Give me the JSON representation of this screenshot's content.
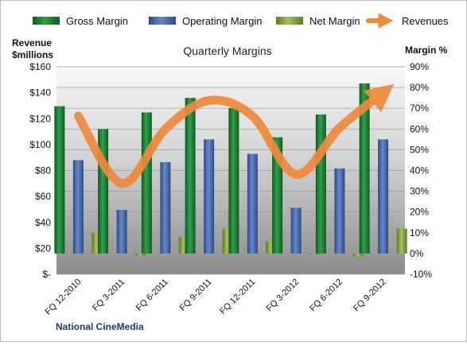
{
  "chart_data": {
    "type": "bar",
    "title": "Quarterly Margins",
    "footer": "National CineMedia",
    "categories": [
      "FQ 12-2010",
      "FQ 3-2011",
      "FQ 6-2011",
      "FQ 9-2011",
      "FQ 12-2011",
      "FQ 3-2012",
      "FQ 6-2012",
      "FQ 9-2012"
    ],
    "left_axis": {
      "label_line1": "Revenue",
      "label_line2": "$millions",
      "range": [
        0,
        160
      ],
      "ticks": [
        0,
        20,
        40,
        60,
        80,
        100,
        120,
        140,
        160
      ],
      "tick_labels": [
        "$-",
        "$20",
        "$40",
        "$60",
        "$80",
        "$100",
        "$120",
        "$140",
        "$160"
      ]
    },
    "right_axis": {
      "label": "Margin %",
      "range": [
        -10,
        90
      ],
      "ticks": [
        -10,
        0,
        10,
        20,
        30,
        40,
        50,
        60,
        70,
        80,
        90
      ],
      "tick_labels": [
        "-10%",
        "0%",
        "10%",
        "20%",
        "30%",
        "40%",
        "50%",
        "60%",
        "70%",
        "80%",
        "90%"
      ]
    },
    "series": [
      {
        "name": "Gross Margin",
        "type": "bar",
        "axis": "right",
        "color": "#2e9e4a",
        "values": [
          71,
          60,
          68,
          75,
          70,
          56,
          67,
          82
        ]
      },
      {
        "name": "Operating Margin",
        "type": "bar",
        "axis": "right",
        "color": "#4a6fb5",
        "values": [
          45,
          21,
          44,
          55,
          48,
          22,
          41,
          55
        ]
      },
      {
        "name": "Net Margin",
        "type": "bar",
        "axis": "right",
        "color": "#8fb04a",
        "values": [
          10,
          -1,
          8,
          12,
          6,
          -0.5,
          -1.5,
          12
        ]
      },
      {
        "name": "Revenues",
        "type": "line",
        "axis": "left",
        "color": "#ef8a3a",
        "values": [
          122,
          70,
          112,
          134,
          122,
          77,
          113,
          140
        ]
      }
    ],
    "legend_position": "top",
    "grid": true
  }
}
